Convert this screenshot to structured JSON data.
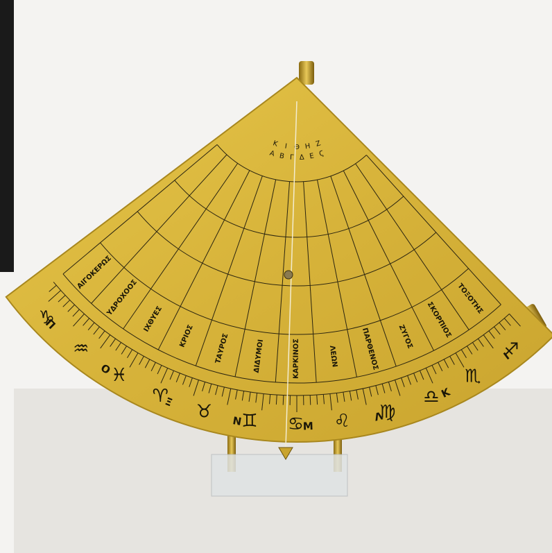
{
  "zodiac": [
    {
      "symbol": "♑",
      "name": "ΑΙΓΟΚΕΡΩΣ"
    },
    {
      "symbol": "♒",
      "name": "ΥΔΡΟΧΟΟΣ"
    },
    {
      "symbol": "♓",
      "name": "ΙΧΘΥΕΣ"
    },
    {
      "symbol": "♈",
      "name": "ΚΡΙΟΣ"
    },
    {
      "symbol": "♉",
      "name": "ΤΑΥΡΟΣ"
    },
    {
      "symbol": "♊",
      "name": "ΔΙΔΥΜΟΙ"
    },
    {
      "symbol": "♋",
      "name": "ΚΑΡΚΙΝΟΣ"
    },
    {
      "symbol": "♌",
      "name": "ΛΕΩΝ"
    },
    {
      "symbol": "♍",
      "name": "ΠΑΡΘΕΝΟΣ"
    },
    {
      "symbol": "♎",
      "name": "ΖΥΓΟΣ"
    },
    {
      "symbol": "♏",
      "name": "ΣΚΟΡΠΙΟΣ"
    },
    {
      "symbol": "♐",
      "name": "ΤΟΞΟΤΗΣ"
    }
  ],
  "scale_letters": [
    "Π",
    "Ο",
    "Ξ",
    "Ν",
    "Μ",
    "Λ",
    "Κ",
    "Ι"
  ],
  "hour_letters": {
    "top": [
      "Κ",
      "Ι",
      "Θ",
      "Η",
      "Ζ"
    ],
    "bottom": [
      "Α",
      "Β",
      "Γ",
      "Δ",
      "Ε",
      "Ϛ"
    ]
  }
}
